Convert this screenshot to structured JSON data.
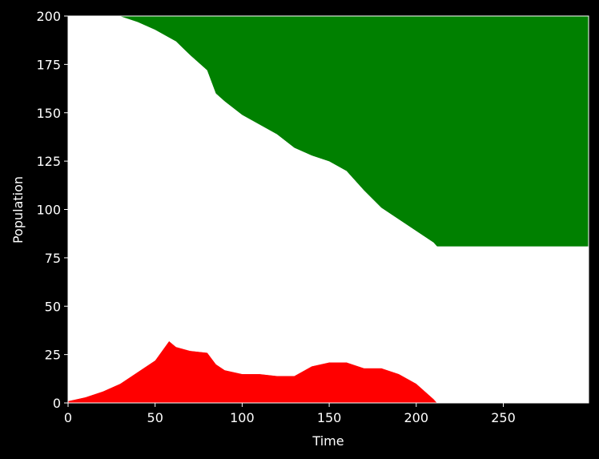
{
  "chart_data": {
    "type": "stacked_area",
    "x_label": "Time",
    "y_label": "Population",
    "x": [
      0,
      10,
      20,
      30,
      40,
      50,
      58,
      62,
      70,
      80,
      85,
      90,
      100,
      110,
      120,
      130,
      140,
      150,
      160,
      170,
      180,
      190,
      200,
      210,
      212,
      250,
      299
    ],
    "series": [
      {
        "color": "#ff0000",
        "values": [
          1,
          3,
          6,
          10,
          16,
          22,
          32,
          29,
          27,
          26,
          20,
          17,
          15,
          15,
          14,
          14,
          19,
          21,
          21,
          18,
          18,
          15,
          10,
          2,
          0,
          0,
          0
        ]
      },
      {
        "color": "#ffffff",
        "values": [
          199,
          197,
          194,
          190,
          181,
          171,
          157,
          158,
          153,
          146,
          140,
          139,
          134,
          129,
          125,
          118,
          109,
          104,
          99,
          92,
          83,
          80,
          79,
          81,
          81,
          81,
          81
        ]
      },
      {
        "color": "#008000",
        "values": [
          0,
          0,
          0,
          0,
          3,
          7,
          11,
          13,
          20,
          28,
          40,
          44,
          51,
          56,
          61,
          68,
          72,
          75,
          80,
          90,
          99,
          105,
          111,
          117,
          119,
          119,
          119
        ]
      }
    ],
    "xlim": [
      0,
      299
    ],
    "ylim": [
      0,
      200
    ],
    "xticks": [
      0,
      50,
      100,
      150,
      200,
      250
    ],
    "yticks": [
      0,
      25,
      50,
      75,
      100,
      125,
      150,
      175,
      200
    ]
  }
}
